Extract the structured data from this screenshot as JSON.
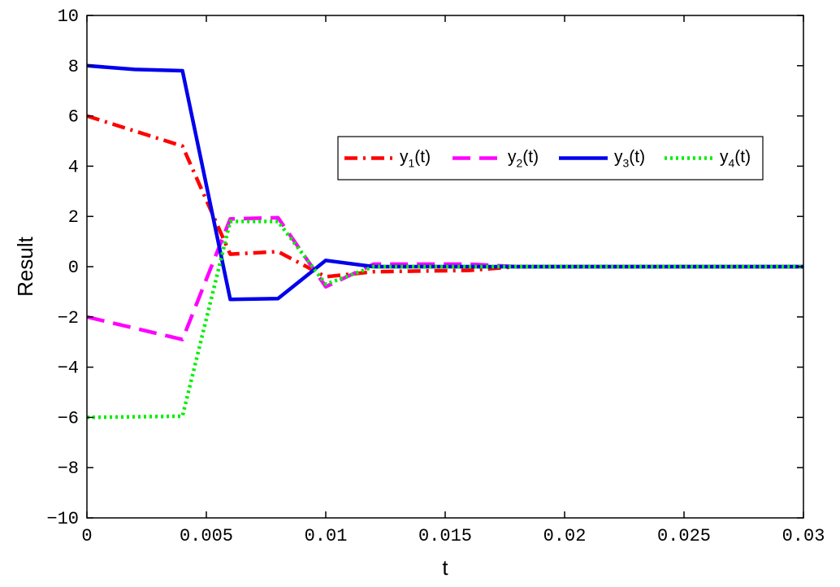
{
  "chart_data": {
    "type": "line",
    "xlabel": "t",
    "ylabel": "Result",
    "xlim": [
      0,
      0.03
    ],
    "ylim": [
      -10,
      10
    ],
    "xticks": [
      0,
      0.005,
      0.01,
      0.015,
      0.02,
      0.025,
      0.03
    ],
    "xtick_labels": [
      "0",
      "0.005",
      "0.01",
      "0.015",
      "0.02",
      "0.025",
      "0.03"
    ],
    "yticks": [
      -10,
      -8,
      -6,
      -4,
      -2,
      0,
      2,
      4,
      6,
      8,
      10
    ],
    "ytick_labels": [
      "−10",
      "−8",
      "−6",
      "−4",
      "−2",
      "0",
      "2",
      "4",
      "6",
      "8",
      "10"
    ],
    "grid": false,
    "legend_position": "upper-right",
    "series": [
      {
        "name": "y",
        "sub": "1",
        "suffix": "(t)",
        "color": "#ff0000",
        "dash": "dashdot",
        "x": [
          0,
          0.004,
          0.006,
          0.008,
          0.01,
          0.012,
          0.016,
          0.018,
          0.03
        ],
        "y": [
          6.0,
          4.8,
          0.5,
          0.6,
          -0.4,
          -0.2,
          -0.15,
          0.0,
          0.0
        ]
      },
      {
        "name": "y",
        "sub": "2",
        "suffix": "(t)",
        "color": "#ff00ff",
        "dash": "dashed",
        "x": [
          0,
          0.004,
          0.006,
          0.008,
          0.01,
          0.012,
          0.016,
          0.018,
          0.03
        ],
        "y": [
          -2.0,
          -2.9,
          1.9,
          1.95,
          -0.8,
          0.1,
          0.1,
          0.0,
          0.0
        ]
      },
      {
        "name": "y",
        "sub": "3",
        "suffix": "(t)",
        "color": "#0000ee",
        "dash": "solid",
        "x": [
          0,
          0.002,
          0.004,
          0.006,
          0.008,
          0.01,
          0.012,
          0.03
        ],
        "y": [
          8.0,
          7.85,
          7.8,
          -1.3,
          -1.27,
          0.25,
          0.0,
          0.0
        ]
      },
      {
        "name": "y",
        "sub": "4",
        "suffix": "(t)",
        "color": "#00ee00",
        "dash": "dotted",
        "x": [
          0,
          0.004,
          0.006,
          0.008,
          0.01,
          0.012,
          0.03
        ],
        "y": [
          -6.0,
          -5.95,
          1.8,
          1.8,
          -0.7,
          0.0,
          0.0
        ]
      }
    ]
  }
}
